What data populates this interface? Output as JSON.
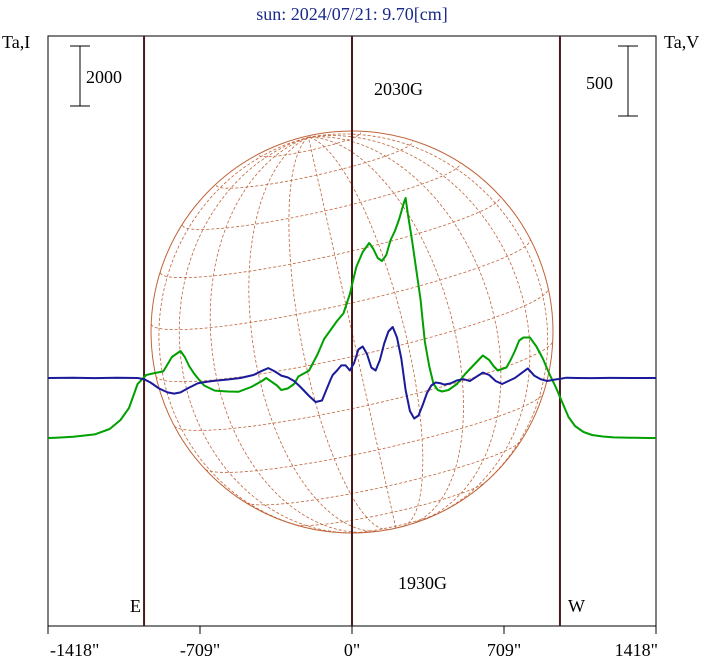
{
  "chart_data": {
    "type": "line",
    "title": "sun: 2024/07/21: 9.70[cm]",
    "left_axis_label": "Ta,I",
    "right_axis_label": "Ta,V",
    "left_scale_label": "2000",
    "right_scale_label": "500",
    "x_ticks": [
      {
        "value": -1418,
        "label": "-1418\""
      },
      {
        "value": -709,
        "label": "-709\""
      },
      {
        "value": 0,
        "label": "0\""
      },
      {
        "value": 709,
        "label": "709\""
      },
      {
        "value": 1418,
        "label": "1418\""
      }
    ],
    "xlim": [
      -1418,
      1418
    ],
    "limb_markers": [
      {
        "value": -970,
        "label": "E"
      },
      {
        "value": 970,
        "label": "W"
      }
    ],
    "annotations": [
      {
        "text": "2030G",
        "x": 250,
        "series": "green"
      },
      {
        "text": "1930G",
        "x": 355,
        "series": "blue"
      }
    ],
    "series": [
      {
        "color": "#00a000",
        "x": [
          -1418,
          -1380,
          -1300,
          -1200,
          -1130,
          -1080,
          -1040,
          -1000,
          -960,
          -930,
          -880,
          -840,
          -800,
          -780,
          -760,
          -740,
          -720,
          -690,
          -640,
          -580,
          -530,
          -470,
          -420,
          -400,
          -380,
          -350,
          -330,
          -300,
          -270,
          -250,
          -200,
          -160,
          -130,
          -100,
          -70,
          -40,
          -10,
          0,
          20,
          50,
          80,
          100,
          120,
          140,
          160,
          180,
          200,
          220,
          240,
          250,
          260,
          280,
          300,
          320,
          330,
          340,
          360,
          380,
          400,
          420,
          450,
          490,
          530,
          570,
          610,
          640,
          660,
          680,
          700,
          720,
          740,
          760,
          780,
          800,
          830,
          860,
          890,
          920,
          950,
          980,
          1010,
          1040,
          1080,
          1120,
          1170,
          1220,
          1300,
          1380,
          1418
        ],
        "y": [
          -2000,
          -1990,
          -1960,
          -1880,
          -1700,
          -1400,
          -1000,
          -200,
          100,
          150,
          220,
          700,
          900,
          700,
          400,
          180,
          0,
          -250,
          -420,
          -450,
          -460,
          -300,
          -100,
          0,
          -100,
          -250,
          -400,
          -350,
          -200,
          50,
          250,
          800,
          1300,
          1600,
          1900,
          2150,
          2800,
          3100,
          3700,
          4200,
          4500,
          4300,
          4000,
          3900,
          4100,
          4600,
          4900,
          5300,
          5800,
          6000,
          5500,
          4600,
          3600,
          2600,
          1900,
          1200,
          400,
          -200,
          -400,
          -450,
          -400,
          -200,
          150,
          450,
          750,
          600,
          400,
          250,
          300,
          350,
          600,
          900,
          1250,
          1350,
          1350,
          1050,
          650,
          150,
          -300,
          -800,
          -1300,
          -1600,
          -1800,
          -1900,
          -1950,
          -1980,
          -1990,
          -2000,
          -2000
        ]
      },
      {
        "color": "#1a1a9a",
        "x": [
          -1418,
          -1300,
          -1200,
          -1100,
          -1000,
          -970,
          -940,
          -900,
          -860,
          -830,
          -800,
          -780,
          -760,
          -740,
          -720,
          -700,
          -650,
          -580,
          -520,
          -460,
          -420,
          -390,
          -360,
          -330,
          -300,
          -270,
          -240,
          -200,
          -170,
          -140,
          -120,
          -100,
          -90,
          -70,
          -50,
          -30,
          -10,
          10,
          30,
          50,
          70,
          90,
          110,
          130,
          150,
          170,
          190,
          210,
          230,
          250,
          270,
          290,
          310,
          330,
          350,
          370,
          390,
          410,
          430,
          460,
          490,
          520,
          550,
          580,
          610,
          640,
          670,
          700,
          730,
          760,
          790,
          820,
          850,
          880,
          910,
          940,
          970,
          1000,
          1050,
          1120,
          1200,
          1300,
          1418
        ],
        "y": [
          0,
          10,
          -5,
          10,
          0,
          -40,
          -150,
          -350,
          -480,
          -520,
          -480,
          -400,
          -320,
          -250,
          -180,
          -150,
          -100,
          -50,
          0,
          100,
          240,
          330,
          220,
          80,
          20,
          -100,
          -300,
          -600,
          -800,
          -750,
          -400,
          -50,
          100,
          250,
          420,
          420,
          250,
          500,
          950,
          1050,
          800,
          350,
          250,
          600,
          1150,
          1550,
          1700,
          1350,
          650,
          -400,
          -1100,
          -1350,
          -1250,
          -900,
          -500,
          -250,
          -150,
          -170,
          -220,
          -180,
          -80,
          -40,
          -100,
          40,
          180,
          100,
          -100,
          -200,
          -100,
          0,
          160,
          320,
          80,
          -40,
          -100,
          -60,
          -30,
          10,
          0,
          -5,
          5,
          0,
          0
        ]
      }
    ]
  }
}
